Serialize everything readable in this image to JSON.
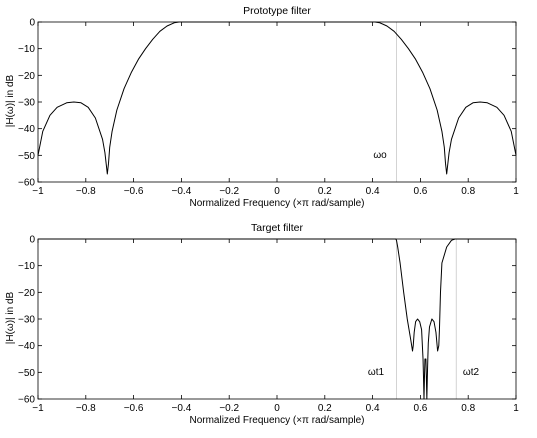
{
  "chart_data": [
    {
      "type": "line",
      "title": "Prototype filter",
      "xlabel": "Normalized Frequency  (×π rad/sample)",
      "ylabel": "|H(ω)| in dB",
      "xlim": [
        -1,
        1
      ],
      "ylim": [
        -60,
        0
      ],
      "xticks": [
        "−1",
        "−0.8",
        "−0.6",
        "−0.4",
        "−0.2",
        "0",
        "0.2",
        "0.4",
        "0.6",
        "0.8",
        "1"
      ],
      "yticks": [
        "0",
        "−10",
        "−20",
        "−30",
        "−40",
        "−50",
        "−60"
      ],
      "grid": false,
      "series": [
        {
          "x": [
            -1.0,
            -0.98,
            -0.95,
            -0.92,
            -0.88,
            -0.85,
            -0.82,
            -0.79,
            -0.76,
            -0.73,
            -0.72,
            -0.715,
            -0.71,
            -0.705,
            -0.7,
            -0.69,
            -0.67,
            -0.64,
            -0.61,
            -0.58,
            -0.55,
            -0.52,
            -0.49,
            -0.46,
            -0.43,
            -0.41,
            -0.4,
            0.4,
            0.41,
            0.43,
            0.46,
            0.49,
            0.52,
            0.55,
            0.58,
            0.61,
            0.64,
            0.67,
            0.69,
            0.7,
            0.705,
            0.71,
            0.715,
            0.72,
            0.73,
            0.76,
            0.79,
            0.82,
            0.85,
            0.88,
            0.92,
            0.95,
            0.98,
            1.0
          ],
          "y": [
            -50,
            -41,
            -35,
            -32,
            -30.3,
            -30,
            -30.3,
            -32,
            -36,
            -44,
            -49,
            -53,
            -57,
            -53,
            -47,
            -41,
            -33,
            -25,
            -19,
            -14,
            -10,
            -6.5,
            -3.5,
            -1.5,
            -0.3,
            0,
            0,
            0,
            0,
            -0.3,
            -1.5,
            -3.5,
            -6.5,
            -10,
            -14,
            -19,
            -25,
            -33,
            -41,
            -47,
            -53,
            -57,
            -53,
            -49,
            -44,
            -36,
            -32,
            -30.3,
            -30,
            -30.3,
            -32,
            -35,
            -41,
            -50
          ]
        }
      ],
      "markers": [
        {
          "x": 0.5,
          "label": "ωo"
        }
      ]
    },
    {
      "type": "line",
      "title": "Target filter",
      "xlabel": "Normalized Frequency  (×π rad/sample)",
      "ylabel": "|H(ω)| in dB",
      "xlim": [
        -1,
        1
      ],
      "ylim": [
        -60,
        0
      ],
      "xticks": [
        "−1",
        "−0.8",
        "−0.6",
        "−0.4",
        "−0.2",
        "0",
        "0.2",
        "0.4",
        "0.6",
        "0.8",
        "1"
      ],
      "yticks": [
        "0",
        "−10",
        "−20",
        "−30",
        "−40",
        "−50",
        "−60"
      ],
      "grid": false,
      "series": [
        {
          "x": [
            -1.0,
            0.497,
            0.5,
            0.505,
            0.515,
            0.53,
            0.545,
            0.56,
            0.567,
            0.57,
            0.574,
            0.58,
            0.588,
            0.597,
            0.605,
            0.611,
            0.613,
            0.615,
            0.617,
            0.619,
            0.623,
            0.625,
            0.627,
            0.629,
            0.631,
            0.633,
            0.638,
            0.648,
            0.657,
            0.665,
            0.672,
            0.677,
            0.68,
            0.684,
            0.69,
            0.71,
            0.73,
            0.745,
            0.755,
            0.76,
            1.0
          ],
          "y": [
            0,
            0,
            -0.5,
            -3,
            -9,
            -20,
            -30,
            -38,
            -42,
            -40,
            -35,
            -31,
            -30,
            -31,
            -34,
            -45,
            -52,
            -60,
            -52,
            -45,
            -45,
            -52,
            -60,
            -52,
            -45,
            -39,
            -33,
            -30,
            -31,
            -35,
            -42,
            -40,
            -33,
            -20,
            -9,
            -3,
            -0.5,
            0,
            0,
            0,
            0
          ]
        }
      ],
      "markers": [
        {
          "x": 0.5,
          "label": "ωt1"
        },
        {
          "x": 0.75,
          "label": "ωt2"
        }
      ]
    }
  ]
}
